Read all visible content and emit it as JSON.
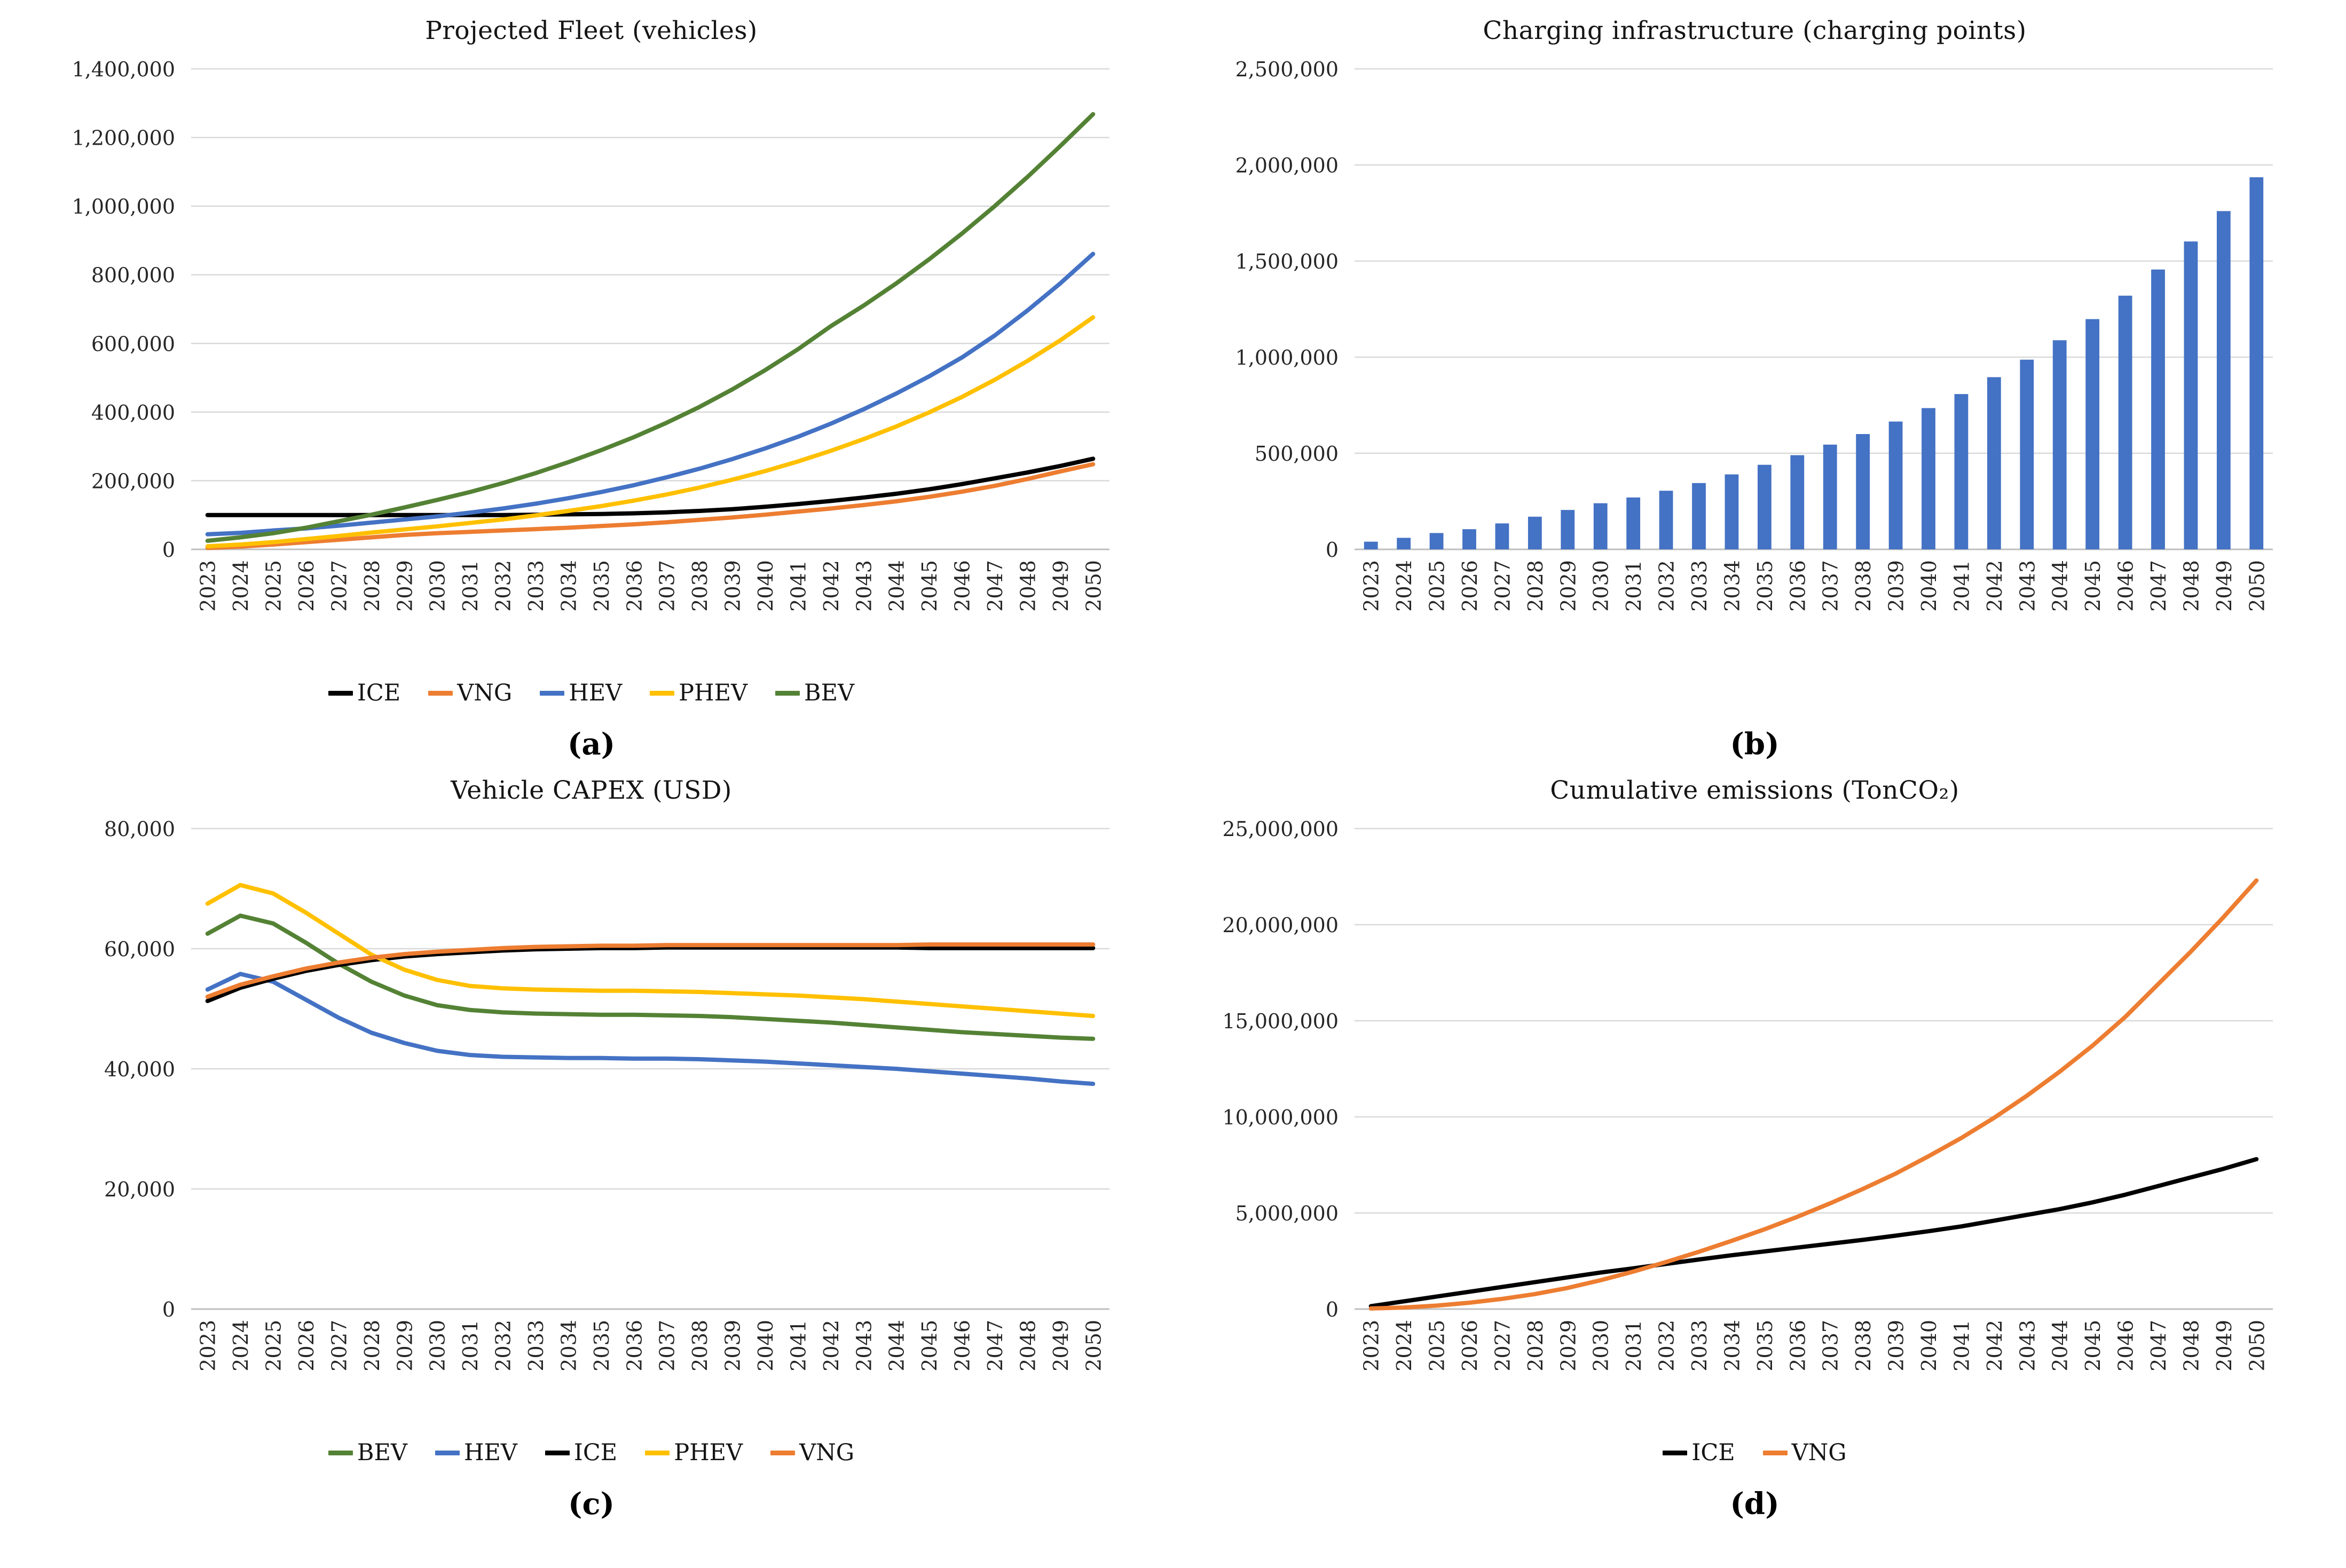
{
  "figure": {
    "background": "#FFFFFF"
  },
  "colors": {
    "gridline": "#D9D9D9",
    "axis_line": "#BFBFBF",
    "bar_blue": "#4472C4",
    "ice_black": "#000000",
    "vng_orange": "#ED7D31",
    "hev_blue": "#4472C4",
    "phev_yellow": "#FFC000",
    "bev_green": "#548235"
  },
  "chart_data": [
    {
      "type": "line",
      "panel_label": "(a)",
      "title": "Projected Fleet (vehicles)",
      "xlabel": "",
      "ylabel": "",
      "ylim": [
        0,
        1400000
      ],
      "ytick_step": 200000,
      "grid": true,
      "legend_position": "bottom",
      "categories": [
        "2023",
        "2024",
        "2025",
        "2026",
        "2027",
        "2028",
        "2029",
        "2030",
        "2031",
        "2032",
        "2033",
        "2034",
        "2035",
        "2036",
        "2037",
        "2038",
        "2039",
        "2040",
        "2041",
        "2042",
        "2043",
        "2044",
        "2045",
        "2046",
        "2047",
        "2048",
        "2049",
        "2050"
      ],
      "series": [
        {
          "name": "ICE",
          "color": "#000000",
          "values": [
            100000,
            100000,
            100000,
            100000,
            100000,
            100000,
            100000,
            100000,
            100000,
            100000,
            101000,
            102000,
            103000,
            105000,
            108000,
            112000,
            117000,
            124000,
            132000,
            141000,
            151000,
            162000,
            175000,
            190000,
            207000,
            224000,
            243000,
            264000
          ]
        },
        {
          "name": "VNG",
          "color": "#ED7D31",
          "values": [
            4000,
            8000,
            14000,
            21000,
            28000,
            35000,
            42000,
            47000,
            51000,
            55000,
            59000,
            63000,
            68000,
            73000,
            79000,
            86000,
            93000,
            101000,
            110000,
            119000,
            129000,
            140000,
            153000,
            168000,
            185000,
            205000,
            227000,
            248000
          ]
        },
        {
          "name": "HEV",
          "color": "#4472C4",
          "values": [
            44000,
            48000,
            55000,
            61000,
            69000,
            78000,
            87000,
            96000,
            107000,
            119000,
            133000,
            149000,
            167000,
            187000,
            210000,
            235000,
            263000,
            294000,
            328000,
            366000,
            408000,
            454000,
            504000,
            559000,
            623000,
            696000,
            775000,
            861000
          ]
        },
        {
          "name": "PHEV",
          "color": "#FFC000",
          "values": [
            9000,
            14000,
            21000,
            30000,
            39000,
            49000,
            58000,
            67000,
            77000,
            87000,
            99000,
            112000,
            126000,
            142000,
            160000,
            180000,
            203000,
            228000,
            256000,
            287000,
            321000,
            358000,
            399000,
            444000,
            494000,
            549000,
            609000,
            676000
          ]
        },
        {
          "name": "BEV",
          "color": "#548235",
          "values": [
            25000,
            35000,
            47000,
            63000,
            82000,
            101000,
            122000,
            144000,
            167000,
            193000,
            222000,
            254000,
            289000,
            327000,
            369000,
            415000,
            466000,
            522000,
            583000,
            650000,
            710000,
            775000,
            845000,
            920000,
            1000000,
            1085000,
            1175000,
            1268000
          ]
        }
      ]
    },
    {
      "type": "bar",
      "panel_label": "(b)",
      "title": "Charging infrastructure (charging points)",
      "xlabel": "",
      "ylabel": "",
      "ylim": [
        0,
        2500000
      ],
      "ytick_step": 500000,
      "grid": true,
      "legend_position": "none",
      "categories": [
        "2023",
        "2024",
        "2025",
        "2026",
        "2027",
        "2028",
        "2029",
        "2030",
        "2031",
        "2032",
        "2033",
        "2034",
        "2035",
        "2036",
        "2037",
        "2038",
        "2039",
        "2040",
        "2041",
        "2042",
        "2043",
        "2044",
        "2045",
        "2046",
        "2047",
        "2048",
        "2049",
        "2050"
      ],
      "series": [
        {
          "name": "Charging points",
          "color": "#4472C4",
          "values": [
            40000,
            60000,
            85000,
            105000,
            135000,
            170000,
            205000,
            240000,
            270000,
            305000,
            345000,
            390000,
            440000,
            490000,
            545000,
            600000,
            665000,
            735000,
            808000,
            896000,
            987000,
            1088000,
            1198000,
            1320000,
            1456000,
            1602000,
            1760000,
            1936000
          ]
        }
      ]
    },
    {
      "type": "line",
      "panel_label": "(c)",
      "title": "Vehicle CAPEX (USD)",
      "xlabel": "",
      "ylabel": "",
      "ylim": [
        0,
        80000
      ],
      "ytick_step": 20000,
      "grid": true,
      "legend_position": "bottom",
      "categories": [
        "2023",
        "2024",
        "2025",
        "2026",
        "2027",
        "2028",
        "2029",
        "2030",
        "2031",
        "2032",
        "2033",
        "2034",
        "2035",
        "2036",
        "2037",
        "2038",
        "2039",
        "2040",
        "2041",
        "2042",
        "2043",
        "2044",
        "2045",
        "2046",
        "2047",
        "2048",
        "2049",
        "2050"
      ],
      "series": [
        {
          "name": "BEV",
          "color": "#548235",
          "values": [
            62500,
            65500,
            64200,
            61000,
            57500,
            54500,
            52200,
            50600,
            49800,
            49400,
            49200,
            49100,
            49000,
            49000,
            48900,
            48800,
            48600,
            48300,
            48000,
            47700,
            47300,
            46900,
            46500,
            46100,
            45800,
            45500,
            45200,
            45000
          ]
        },
        {
          "name": "HEV",
          "color": "#4472C4",
          "values": [
            53200,
            55800,
            54500,
            51500,
            48500,
            46000,
            44300,
            43000,
            42300,
            42000,
            41900,
            41800,
            41800,
            41700,
            41700,
            41600,
            41400,
            41200,
            40900,
            40600,
            40300,
            40000,
            39600,
            39200,
            38800,
            38400,
            37900,
            37500
          ]
        },
        {
          "name": "ICE",
          "color": "#000000",
          "values": [
            51300,
            53500,
            55000,
            56300,
            57300,
            58100,
            58700,
            59100,
            59400,
            59700,
            59900,
            60000,
            60100,
            60100,
            60200,
            60200,
            60200,
            60200,
            60200,
            60200,
            60200,
            60200,
            60100,
            60100,
            60100,
            60100,
            60100,
            60100
          ]
        },
        {
          "name": "PHEV",
          "color": "#FFC000",
          "values": [
            67500,
            70600,
            69200,
            66000,
            62500,
            59000,
            56500,
            54800,
            53800,
            53400,
            53200,
            53100,
            53000,
            53000,
            52900,
            52800,
            52600,
            52400,
            52200,
            51900,
            51600,
            51200,
            50800,
            50400,
            50000,
            49600,
            49200,
            48800
          ]
        },
        {
          "name": "VNG",
          "color": "#ED7D31",
          "values": [
            52000,
            54000,
            55400,
            56700,
            57700,
            58500,
            59100,
            59500,
            59800,
            60100,
            60300,
            60400,
            60500,
            60500,
            60600,
            60600,
            60600,
            60600,
            60600,
            60600,
            60600,
            60600,
            60700,
            60700,
            60700,
            60700,
            60700,
            60700
          ]
        }
      ]
    },
    {
      "type": "line",
      "panel_label": "(d)",
      "title": "Cumulative emissions (TonCO₂)",
      "xlabel": "",
      "ylabel": "",
      "ylim": [
        0,
        25000000
      ],
      "ytick_step": 5000000,
      "grid": true,
      "legend_position": "bottom",
      "categories": [
        "2023",
        "2024",
        "2025",
        "2026",
        "2027",
        "2028",
        "2029",
        "2030",
        "2031",
        "2032",
        "2033",
        "2034",
        "2035",
        "2036",
        "2037",
        "2038",
        "2039",
        "2040",
        "2041",
        "2042",
        "2043",
        "2044",
        "2045",
        "2046",
        "2047",
        "2048",
        "2049",
        "2050"
      ],
      "series": [
        {
          "name": "ICE",
          "color": "#000000",
          "values": [
            150000,
            400000,
            650000,
            900000,
            1150000,
            1400000,
            1650000,
            1900000,
            2120000,
            2350000,
            2580000,
            2800000,
            3000000,
            3200000,
            3400000,
            3600000,
            3820000,
            4050000,
            4300000,
            4600000,
            4900000,
            5200000,
            5550000,
            5950000,
            6400000,
            6850000,
            7300000,
            7800000
          ]
        },
        {
          "name": "VNG",
          "color": "#ED7D31",
          "values": [
            30000,
            80000,
            180000,
            330000,
            530000,
            780000,
            1100000,
            1500000,
            1950000,
            2450000,
            2980000,
            3550000,
            4150000,
            4800000,
            5500000,
            6250000,
            7050000,
            7950000,
            8900000,
            9950000,
            11100000,
            12350000,
            13700000,
            15200000,
            16900000,
            18600000,
            20400000,
            22300000
          ]
        }
      ]
    }
  ]
}
